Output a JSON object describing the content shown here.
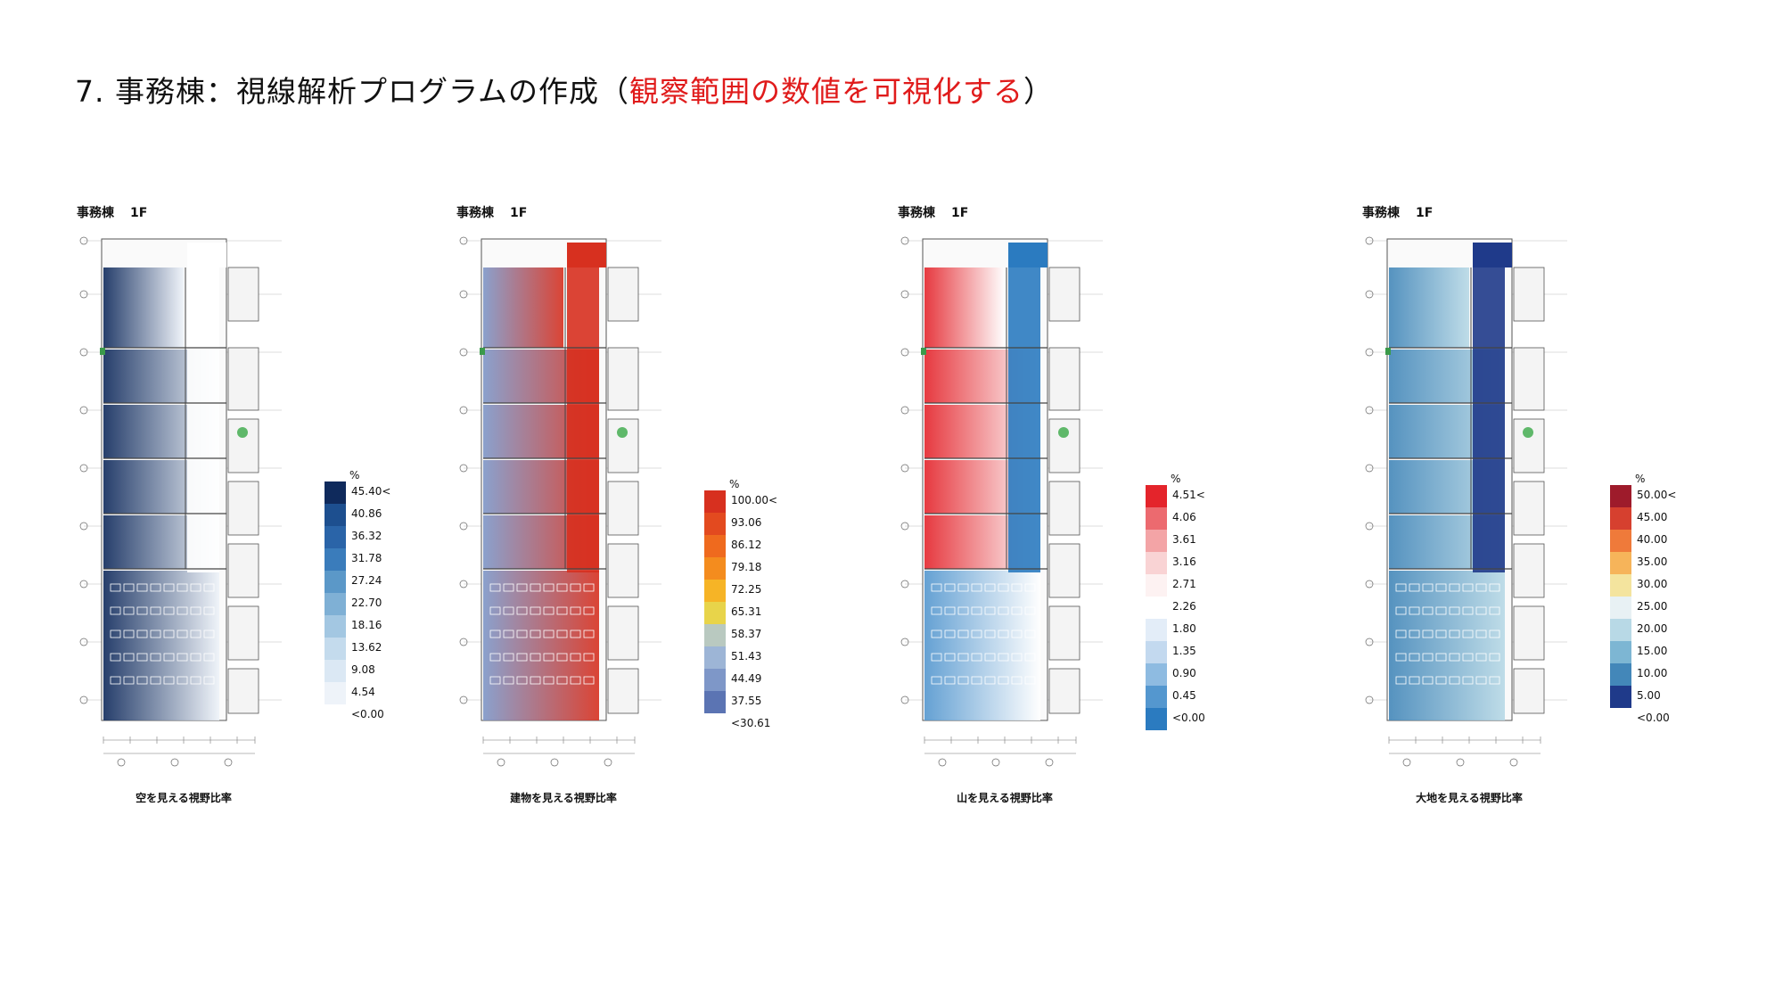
{
  "header": {
    "title_black_prefix": "7. 事務棟：視線解析プログラムの作成（",
    "title_red": "観察範囲の数値を可視化する",
    "title_black_suffix": "）"
  },
  "panels": [
    {
      "floor_building": "事務棟",
      "floor_level": "1F",
      "caption": "空を見える視野比率",
      "legend_unit": "%",
      "legend_labels": [
        "45.40<",
        "40.86",
        "36.32",
        "31.78",
        "27.24",
        "22.70",
        "18.16",
        "13.62",
        "9.08",
        "4.54",
        "<0.00"
      ],
      "legend_colors": [
        "#0f2a5c",
        "#1d4f8f",
        "#2a64a8",
        "#3a7cbb",
        "#5b98c8",
        "#7fb0d5",
        "#a3c7e2",
        "#c4dbed",
        "#dbe8f4",
        "#eef3f9"
      ],
      "scheme": "sky"
    },
    {
      "floor_building": "事務棟",
      "floor_level": "1F",
      "caption": "建物を見える視野比率",
      "legend_unit": "%",
      "legend_labels": [
        "100.00<",
        "93.06",
        "86.12",
        "79.18",
        "72.25",
        "65.31",
        "58.37",
        "51.43",
        "44.49",
        "37.55",
        "<30.61"
      ],
      "legend_colors": [
        "#d7301f",
        "#e34a1f",
        "#ef6a1e",
        "#f48c1e",
        "#f6b426",
        "#e8d44a",
        "#b9c9c0",
        "#9db5d6",
        "#7e97c8",
        "#5b74b3"
      ],
      "scheme": "building"
    },
    {
      "floor_building": "事務棟",
      "floor_level": "1F",
      "caption": "山を見える視野比率",
      "legend_unit": "%",
      "legend_labels": [
        "4.51<",
        "4.06",
        "3.61",
        "3.16",
        "2.71",
        "2.26",
        "1.80",
        "1.35",
        "0.90",
        "0.45",
        "<0.00"
      ],
      "legend_colors": [
        "#e4242b",
        "#ec6a6f",
        "#f3a4a6",
        "#f9d3d4",
        "#fdf2f2",
        "#ffffff",
        "#e3edf8",
        "#c3d9ef",
        "#8ebbe1",
        "#5497cf",
        "#2b7bc0"
      ],
      "scheme": "mountain"
    },
    {
      "floor_building": "事務棟",
      "floor_level": "1F",
      "caption": "大地を見える視野比率",
      "legend_unit": "%",
      "legend_labels": [
        "50.00<",
        "45.00",
        "40.00",
        "35.00",
        "30.00",
        "25.00",
        "20.00",
        "15.00",
        "10.00",
        "5.00",
        "<0.00"
      ],
      "legend_colors": [
        "#9e1b2b",
        "#d6402f",
        "#ef7a3a",
        "#f6b45a",
        "#f4e49e",
        "#e8f1f4",
        "#b8d9e6",
        "#7db6d3",
        "#4387b9",
        "#1f3a8a"
      ],
      "scheme": "ground"
    }
  ]
}
